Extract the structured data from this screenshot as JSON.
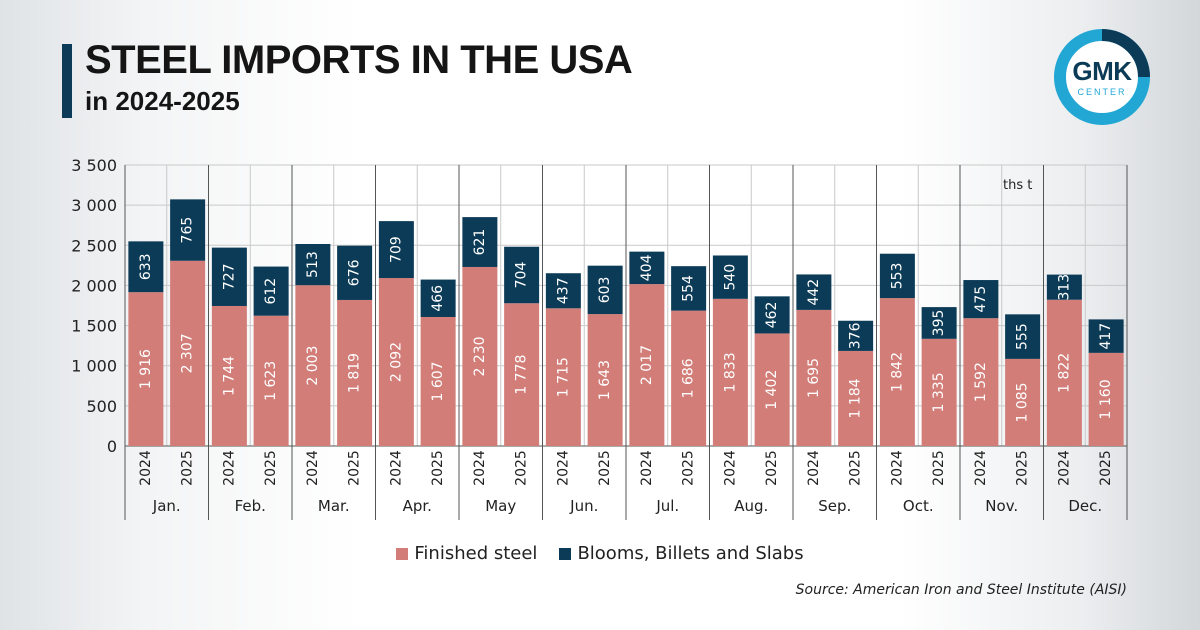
{
  "header": {
    "title": "STEEL IMPORTS IN THE USA",
    "subtitle": "in 2024-2025"
  },
  "logo": {
    "text": "GMK",
    "sub": "CENTER"
  },
  "unit_label": "ths t",
  "source": "Source: American Iron and Steel Institute (AISI)",
  "colors": {
    "finished": "#d27d78",
    "blooms": "#0c3b57",
    "accent": "#22a7d4",
    "grid": "#c9c9c9"
  },
  "chart_data": {
    "type": "bar",
    "stacked": true,
    "groups": [
      "Jan.",
      "Feb.",
      "Mar.",
      "Apr.",
      "May",
      "Jun.",
      "Jul.",
      "Aug.",
      "Sep.",
      "Oct.",
      "Nov.",
      "Dec."
    ],
    "years": [
      "2024",
      "2025"
    ],
    "categories": [
      "Jan. 2024",
      "Jan. 2025",
      "Feb. 2024",
      "Feb. 2025",
      "Mar. 2024",
      "Mar. 2025",
      "Apr. 2024",
      "Apr. 2025",
      "May 2024",
      "May 2025",
      "Jun. 2024",
      "Jun. 2025",
      "Jul. 2024",
      "Jul. 2025",
      "Aug. 2024",
      "Aug. 2025",
      "Sep. 2024",
      "Sep. 2025",
      "Oct. 2024",
      "Oct. 2025",
      "Nov. 2024",
      "Nov. 2025",
      "Dec. 2024",
      "Dec. 2025"
    ],
    "series": [
      {
        "name": "Finished steel",
        "values": [
          1916,
          2307,
          1744,
          1623,
          2003,
          1819,
          2092,
          1607,
          2230,
          1778,
          1715,
          1643,
          2017,
          1686,
          1833,
          1402,
          1695,
          1184,
          1842,
          1335,
          1592,
          1085,
          1822,
          1160
        ],
        "labels": [
          "1 916",
          "2 307",
          "1 744",
          "1 623",
          "2 003",
          "1 819",
          "2 092",
          "1 607",
          "2 230",
          "1 778",
          "1 715",
          "1 643",
          "2 017",
          "1 686",
          "1 833",
          "1 402",
          "1 695",
          "1 184",
          "1 842",
          "1 335",
          "1 592",
          "1 085",
          "1 822",
          "1 160"
        ]
      },
      {
        "name": "Blooms, Billets and Slabs",
        "values": [
          633,
          765,
          727,
          612,
          513,
          676,
          709,
          466,
          621,
          704,
          437,
          603,
          404,
          554,
          540,
          462,
          442,
          376,
          553,
          395,
          475,
          555,
          313,
          417
        ],
        "labels": [
          "633",
          "765",
          "727",
          "612",
          "513",
          "676",
          "709",
          "466",
          "621",
          "704",
          "437",
          "603",
          "404",
          "554",
          "540",
          "462",
          "442",
          "376",
          "553",
          "395",
          "475",
          "555",
          "313",
          "417"
        ]
      }
    ],
    "ylim": [
      0,
      3500
    ],
    "yticks": [
      0,
      500,
      1000,
      1500,
      2000,
      2500,
      3000,
      3500
    ],
    "ytick_labels": [
      "0",
      "500",
      "1 000",
      "1 500",
      "2 000",
      "2 500",
      "3 000",
      "3 500"
    ],
    "grid": true,
    "legend_position": "bottom-center"
  }
}
